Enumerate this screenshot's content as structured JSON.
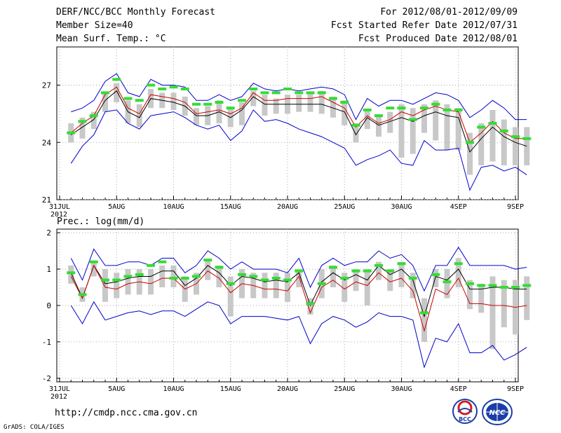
{
  "header": {
    "title": "DERF/NCC/BCC Monthly Forecast",
    "member_size": "Member Size=40",
    "variable1": "Mean Surf. Temp.: °C",
    "period": "For 2012/08/01-2012/09/09",
    "started": "Fcst Started Refer Date 2012/07/31",
    "produced": "Fcst Produced Date 2012/08/01"
  },
  "footer": {
    "url": "http://cmdp.ncc.cma.gov.cn",
    "grads": "GrADS: COLA/IGES",
    "logo_left": "BCC",
    "logo_right": "NCC"
  },
  "colors": {
    "envelope": "#0000cc",
    "mean": "#000000",
    "median": "#cc0000",
    "bar": "#c8c8c8",
    "marker": "#33dd33"
  },
  "chart_data": [
    {
      "name": "temperature",
      "type": "line",
      "title": "Mean Surf. Temp.: °C",
      "ylim": [
        21,
        29
      ],
      "yticks": [
        21,
        24,
        27
      ],
      "xlim": [
        0,
        40
      ],
      "xticks": [
        {
          "x": 0,
          "label": "31JUL",
          "label2": "2012"
        },
        {
          "x": 5,
          "label": "5AUG"
        },
        {
          "x": 10,
          "label": "10AUG"
        },
        {
          "x": 15,
          "label": "15AUG"
        },
        {
          "x": 20,
          "label": "20AUG"
        },
        {
          "x": 25,
          "label": "25AUG"
        },
        {
          "x": 30,
          "label": "30AUG"
        },
        {
          "x": 35,
          "label": "4SEP"
        },
        {
          "x": 40,
          "label": "9SEP"
        }
      ],
      "x_start": 1,
      "series": [
        {
          "name": "upper",
          "color": "#0000cc",
          "values": [
            25.6,
            25.8,
            26.2,
            27.2,
            27.6,
            26.6,
            26.4,
            27.3,
            27.0,
            27.0,
            26.9,
            26.2,
            26.2,
            26.5,
            26.2,
            26.4,
            27.1,
            26.8,
            26.7,
            26.8,
            26.7,
            26.8,
            26.9,
            26.8,
            26.5,
            25.2,
            26.3,
            25.9,
            26.2,
            26.2,
            26.0,
            26.3,
            26.6,
            26.5,
            26.2,
            25.3,
            25.7,
            26.2,
            25.8,
            25.2,
            25.2
          ]
        },
        {
          "name": "mean",
          "color": "#000000",
          "values": [
            24.4,
            24.8,
            25.2,
            26.2,
            26.7,
            25.6,
            25.3,
            26.3,
            26.2,
            26.1,
            25.9,
            25.4,
            25.4,
            25.6,
            25.3,
            25.7,
            26.4,
            26.0,
            26.0,
            26.0,
            26.0,
            26.0,
            26.0,
            25.8,
            25.6,
            24.4,
            25.3,
            24.9,
            25.1,
            25.3,
            25.1,
            25.4,
            25.6,
            25.4,
            25.3,
            23.5,
            24.2,
            24.8,
            24.3,
            24.0,
            23.8
          ]
        },
        {
          "name": "median",
          "color": "#cc0000",
          "values": [
            24.5,
            25.0,
            25.4,
            26.5,
            26.9,
            25.8,
            25.5,
            26.5,
            26.4,
            26.3,
            26.1,
            25.5,
            25.6,
            25.7,
            25.5,
            25.8,
            26.6,
            26.2,
            26.2,
            26.3,
            26.3,
            26.3,
            26.4,
            26.1,
            25.8,
            24.8,
            25.4,
            25.0,
            25.2,
            25.6,
            25.4,
            25.7,
            25.9,
            25.7,
            25.6,
            24.0,
            24.5,
            25.1,
            24.5,
            24.2,
            24.2
          ]
        },
        {
          "name": "lower",
          "color": "#0000cc",
          "values": [
            22.9,
            23.8,
            24.4,
            25.6,
            25.7,
            25.0,
            24.7,
            25.4,
            25.5,
            25.6,
            25.3,
            24.9,
            24.7,
            24.9,
            24.1,
            24.6,
            25.7,
            25.1,
            25.2,
            25.0,
            24.7,
            24.5,
            24.3,
            24.0,
            23.7,
            22.8,
            23.1,
            23.3,
            23.6,
            22.9,
            22.8,
            24.1,
            23.6,
            23.6,
            23.7,
            21.5,
            22.7,
            22.8,
            22.5,
            22.7,
            22.3
          ]
        }
      ],
      "bars_low": [
        24.0,
        24.2,
        24.7,
        25.6,
        26.1,
        25.0,
        24.8,
        25.8,
        25.8,
        25.7,
        25.4,
        24.9,
        24.9,
        25.0,
        24.8,
        24.9,
        25.9,
        25.4,
        25.5,
        25.5,
        25.6,
        25.6,
        25.5,
        25.3,
        24.9,
        24.0,
        24.7,
        24.3,
        24.5,
        23.2,
        23.4,
        24.5,
        24.1,
        23.6,
        23.6,
        22.3,
        22.8,
        23.0,
        22.8,
        22.8,
        22.8
      ],
      "bars_high": [
        25.0,
        25.3,
        25.6,
        26.6,
        27.1,
        26.2,
        26.0,
        26.8,
        26.6,
        26.6,
        26.4,
        25.8,
        25.9,
        26.2,
        25.8,
        26.1,
        26.7,
        26.5,
        26.3,
        26.5,
        26.5,
        26.6,
        26.7,
        26.4,
        26.2,
        25.0,
        25.7,
        25.4,
        25.6,
        26.0,
        25.8,
        26.0,
        26.2,
        26.0,
        25.8,
        24.5,
        25.0,
        25.7,
        25.2,
        24.8,
        24.8
      ],
      "markers": [
        24.5,
        25.1,
        25.4,
        26.6,
        27.3,
        26.3,
        26.2,
        27.0,
        26.8,
        26.9,
        26.8,
        26.0,
        26.0,
        26.1,
        25.8,
        26.2,
        26.8,
        26.6,
        26.6,
        26.8,
        26.6,
        26.6,
        26.6,
        26.3,
        26.1,
        24.9,
        25.7,
        25.4,
        25.8,
        25.8,
        25.2,
        25.8,
        26.0,
        25.7,
        25.7,
        24.0,
        24.8,
        25.0,
        24.6,
        24.3,
        24.2
      ]
    },
    {
      "name": "precipitation",
      "type": "line",
      "title": "Prec.: log(mm/d)",
      "ylim": [
        -2.1,
        2.1
      ],
      "yticks": [
        -2,
        -1,
        0,
        1,
        2
      ],
      "xlim": [
        0,
        40
      ],
      "xticks": [
        {
          "x": 0,
          "label": "31JUL",
          "label2": "2012"
        },
        {
          "x": 5,
          "label": "5AUG"
        },
        {
          "x": 10,
          "label": "10AUG"
        },
        {
          "x": 15,
          "label": "15AUG"
        },
        {
          "x": 20,
          "label": "20AUG"
        },
        {
          "x": 25,
          "label": "25AUG"
        },
        {
          "x": 30,
          "label": "30AUG"
        },
        {
          "x": 35,
          "label": "4SEP"
        },
        {
          "x": 40,
          "label": "9SEP"
        }
      ],
      "x_start": 1,
      "series": [
        {
          "name": "upper",
          "color": "#0000cc",
          "values": [
            1.3,
            0.7,
            1.55,
            1.1,
            1.1,
            1.2,
            1.2,
            1.1,
            1.3,
            1.3,
            0.9,
            1.1,
            1.5,
            1.3,
            1.0,
            1.2,
            1.0,
            1.0,
            1.0,
            0.9,
            1.3,
            0.5,
            1.1,
            1.3,
            1.1,
            1.2,
            1.2,
            1.5,
            1.3,
            1.4,
            1.1,
            0.4,
            1.1,
            1.1,
            1.6,
            1.1,
            1.1,
            1.1,
            1.1,
            1.0,
            1.05
          ]
        },
        {
          "name": "mean",
          "color": "#000000",
          "values": [
            0.9,
            0.2,
            1.1,
            0.6,
            0.65,
            0.75,
            0.8,
            0.8,
            0.95,
            0.95,
            0.55,
            0.75,
            1.1,
            0.9,
            0.55,
            0.8,
            0.75,
            0.65,
            0.7,
            0.65,
            0.9,
            0.0,
            0.65,
            0.9,
            0.7,
            0.85,
            0.7,
            1.1,
            0.85,
            1.0,
            0.7,
            -0.3,
            0.8,
            0.7,
            1.0,
            0.45,
            0.45,
            0.5,
            0.5,
            0.45,
            0.45
          ]
        },
        {
          "name": "median",
          "color": "#cc0000",
          "values": [
            0.8,
            0.2,
            1.1,
            0.5,
            0.45,
            0.6,
            0.65,
            0.6,
            0.75,
            0.75,
            0.45,
            0.6,
            0.95,
            0.75,
            0.35,
            0.6,
            0.55,
            0.45,
            0.45,
            0.4,
            0.8,
            -0.2,
            0.5,
            0.7,
            0.45,
            0.65,
            0.55,
            0.9,
            0.65,
            0.75,
            0.4,
            -0.7,
            0.45,
            0.3,
            0.75,
            0.05,
            0.05,
            0.0,
            0.0,
            -0.05,
            0.0
          ]
        },
        {
          "name": "lower",
          "color": "#0000cc",
          "values": [
            0.0,
            -0.5,
            0.1,
            -0.4,
            -0.3,
            -0.2,
            -0.15,
            -0.25,
            -0.15,
            -0.15,
            -0.3,
            -0.1,
            0.1,
            0.0,
            -0.5,
            -0.3,
            -0.3,
            -0.3,
            -0.35,
            -0.4,
            -0.3,
            -1.05,
            -0.5,
            -0.3,
            -0.4,
            -0.6,
            -0.45,
            -0.2,
            -0.3,
            -0.3,
            -0.4,
            -1.7,
            -0.9,
            -1.0,
            -0.5,
            -1.3,
            -1.3,
            -1.1,
            -1.5,
            -1.35,
            -1.15
          ]
        },
        {
          "name": "markers",
          "color": "#33dd33",
          "values": [
            0.9,
            0.3,
            1.2,
            0.7,
            0.7,
            0.8,
            0.85,
            1.1,
            1.2,
            0.75,
            0.75,
            0.8,
            1.25,
            1.05,
            0.6,
            0.85,
            0.8,
            0.7,
            0.75,
            0.7,
            0.95,
            0.05,
            0.6,
            1.05,
            0.75,
            0.95,
            0.95,
            1.1,
            0.95,
            1.15,
            0.75,
            -0.2,
            0.85,
            0.65,
            1.15,
            0.6,
            0.55,
            0.55,
            0.5,
            0.5,
            0.55
          ]
        }
      ],
      "bars_low": [
        0.6,
        0.1,
        0.8,
        0.1,
        0.2,
        0.3,
        0.3,
        0.3,
        0.5,
        0.5,
        0.1,
        0.3,
        0.7,
        0.5,
        -0.3,
        0.2,
        0.2,
        0.2,
        0.2,
        0.1,
        0.5,
        -0.25,
        0.2,
        0.5,
        0.1,
        0.4,
        0.0,
        0.7,
        0.4,
        0.5,
        0.2,
        -1.0,
        0.5,
        0.2,
        0.5,
        -0.1,
        -0.2,
        -1.2,
        -0.6,
        -0.8,
        -0.4
      ],
      "bars_high": [
        1.1,
        0.5,
        1.2,
        1.0,
        0.9,
        1.0,
        1.0,
        1.0,
        1.1,
        1.1,
        0.8,
        0.9,
        1.25,
        1.1,
        0.8,
        1.0,
        0.9,
        0.9,
        0.9,
        0.9,
        1.0,
        0.2,
        1.0,
        1.1,
        0.9,
        1.0,
        1.0,
        1.2,
        1.0,
        1.2,
        0.9,
        0.2,
        1.0,
        1.0,
        1.3,
        0.7,
        0.6,
        0.8,
        0.7,
        0.7,
        0.8
      ],
      "markers": [
        0.9,
        0.3,
        1.2,
        0.7,
        0.7,
        0.8,
        0.85,
        1.1,
        1.2,
        0.75,
        0.75,
        0.8,
        1.25,
        1.05,
        0.6,
        0.85,
        0.8,
        0.7,
        0.75,
        0.7,
        0.95,
        0.05,
        0.6,
        1.05,
        0.75,
        0.95,
        0.95,
        1.1,
        0.95,
        1.15,
        0.75,
        -0.2,
        0.85,
        0.65,
        1.15,
        0.6,
        0.55,
        0.55,
        0.5,
        0.5,
        0.55
      ]
    }
  ]
}
